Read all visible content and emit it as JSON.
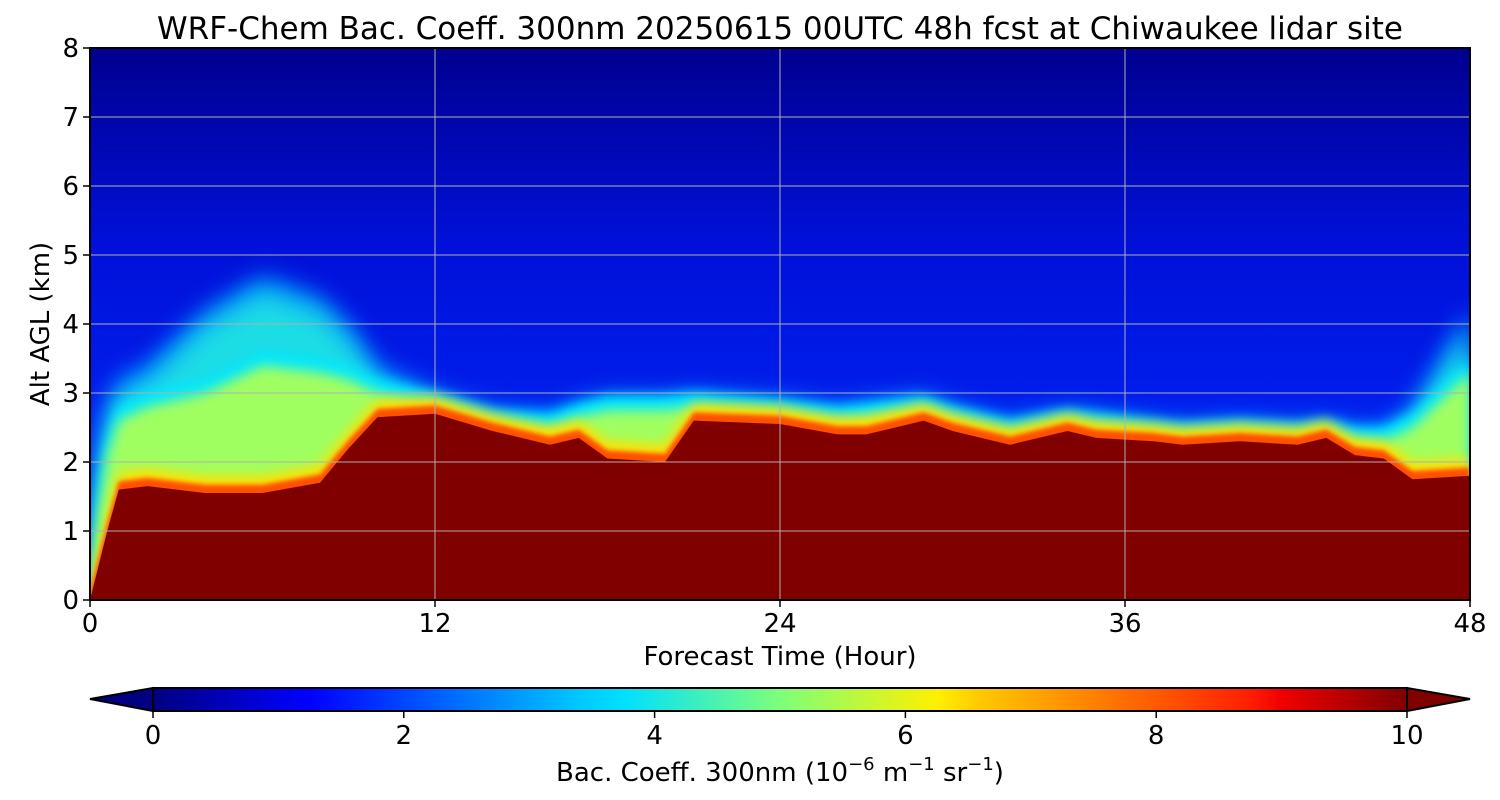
{
  "chart_data": {
    "type": "heatmap",
    "title": "WRF-Chem Bac. Coeff. 300nm  20250615 00UTC 48h fcst at Chiwaukee lidar site",
    "xlabel": "Forecast Time (Hour)",
    "ylabel": "Alt AGL (km)",
    "xlim": [
      0,
      48
    ],
    "ylim": [
      0,
      8
    ],
    "x_ticks": [
      "0",
      "12",
      "24",
      "36",
      "48"
    ],
    "y_ticks": [
      "0",
      "1",
      "2",
      "3",
      "4",
      "5",
      "6",
      "7",
      "8"
    ],
    "grid": true,
    "colorbar": {
      "label": "Bac. Coeff. 300nm  (10",
      "label_exp1": "−6",
      "label_mid": " m",
      "label_exp2": "−1",
      "label_mid2": " sr",
      "label_exp3": "−1",
      "label_end": ")",
      "range": [
        0,
        10
      ],
      "extend": "both",
      "ticks": [
        "0",
        "2",
        "4",
        "6",
        "8",
        "10"
      ],
      "colormap": "jet"
    },
    "x_hours": [
      0,
      0.3,
      0.6,
      1,
      2,
      4,
      6,
      8,
      9,
      10,
      12,
      14,
      16,
      17,
      18,
      20,
      21,
      24,
      26,
      27,
      29,
      30,
      32,
      34,
      35,
      37,
      38,
      40,
      42,
      43,
      44,
      45,
      46,
      48
    ],
    "saturated_top_km": [
      0,
      0.5,
      1.0,
      1.6,
      1.65,
      1.55,
      1.55,
      1.7,
      2.2,
      2.65,
      2.7,
      2.45,
      2.25,
      2.35,
      2.05,
      2.0,
      2.6,
      2.55,
      2.4,
      2.4,
      2.6,
      2.45,
      2.25,
      2.45,
      2.35,
      2.3,
      2.25,
      2.3,
      2.25,
      2.35,
      2.1,
      2.05,
      1.75,
      1.8
    ],
    "transition_top_km": [
      0.2,
      1.5,
      2.3,
      2.8,
      3.0,
      3.2,
      3.6,
      3.5,
      3.4,
      3.2,
      3.0,
      2.75,
      2.7,
      2.85,
      2.95,
      2.95,
      3.0,
      2.9,
      2.8,
      2.85,
      2.95,
      2.8,
      2.6,
      2.75,
      2.7,
      2.6,
      2.55,
      2.6,
      2.55,
      2.6,
      2.5,
      2.5,
      2.7,
      3.5
    ],
    "plume_top_km": [
      0.3,
      2.0,
      2.8,
      3.2,
      3.4,
      4.2,
      4.7,
      4.4,
      4.0,
      3.4,
      3.0,
      2.75,
      2.7,
      2.85,
      2.95,
      2.95,
      3.0,
      2.9,
      2.8,
      2.85,
      2.95,
      2.8,
      2.6,
      2.75,
      2.7,
      2.6,
      2.55,
      2.6,
      2.55,
      2.6,
      2.5,
      2.5,
      2.8,
      4.2
    ]
  }
}
